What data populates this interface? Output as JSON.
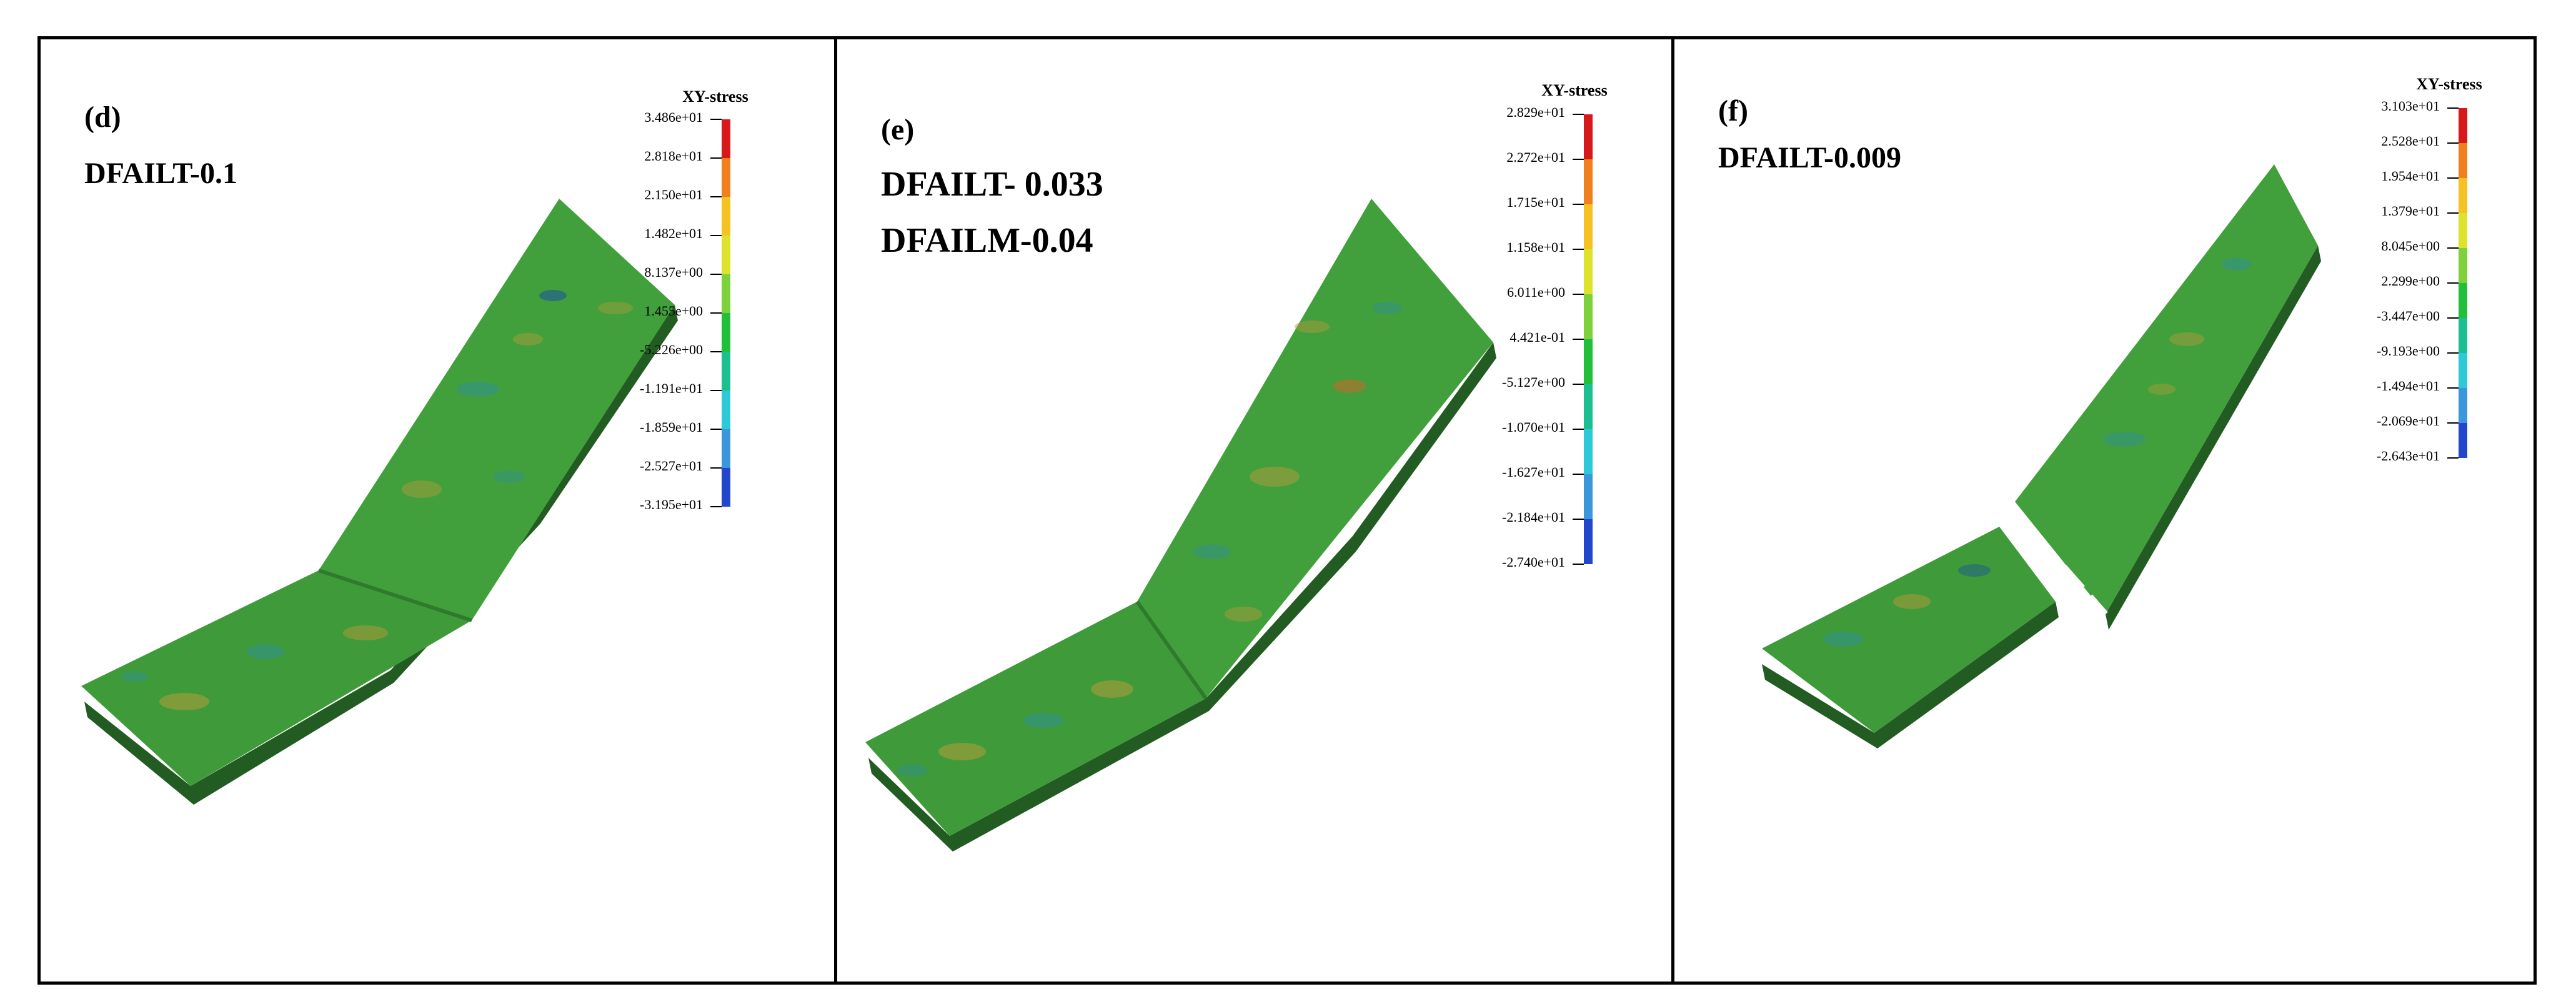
{
  "panels": [
    {
      "id": "d",
      "label": "(d)",
      "caption_lines": [
        "DFAILT-0.1"
      ],
      "legend": {
        "title": "XY-stress",
        "ticks": [
          "3.486e+01",
          "2.818e+01",
          "2.150e+01",
          "1.482e+01",
          "8.137e+00",
          "1.455e+00",
          "-5.226e+00",
          "-1.191e+01",
          "-1.859e+01",
          "-2.527e+01",
          "-3.195e+01"
        ]
      }
    },
    {
      "id": "e",
      "label": "(e)",
      "caption_lines": [
        "DFAILT- 0.033",
        "DFAILM-0.04"
      ],
      "legend": {
        "title": "XY-stress",
        "ticks": [
          "2.829e+01",
          "2.272e+01",
          "1.715e+01",
          "1.158e+01",
          "6.011e+00",
          "4.421e-01",
          "-5.127e+00",
          "-1.070e+01",
          "-1.627e+01",
          "-2.184e+01",
          "-2.740e+01"
        ]
      }
    },
    {
      "id": "f",
      "label": "(f)",
      "caption_lines": [
        "DFAILT-0.009"
      ],
      "legend": {
        "title": "XY-stress",
        "ticks": [
          "3.103e+01",
          "2.528e+01",
          "1.954e+01",
          "1.379e+01",
          "8.045e+00",
          "2.299e+00",
          "-3.447e+00",
          "-9.193e+00",
          "-1.494e+01",
          "-2.069e+01",
          "-2.643e+01"
        ]
      }
    }
  ],
  "colors": {
    "colorbar": [
      "#d7191c",
      "#f07f1d",
      "#f6c223",
      "#dde32c",
      "#7fd13b",
      "#22c03a",
      "#1cbf8f",
      "#2ec9d6",
      "#3b97dc",
      "#2347cc",
      "#1010b0"
    ],
    "plate_base": "#3f9b3a",
    "plate_light": "#4eaa3f",
    "plate_dark": "#2f7a2c",
    "plate_edge": "#235c22",
    "spot_orange": "#b59a3a",
    "spot_blue": "#2f8f9a"
  }
}
